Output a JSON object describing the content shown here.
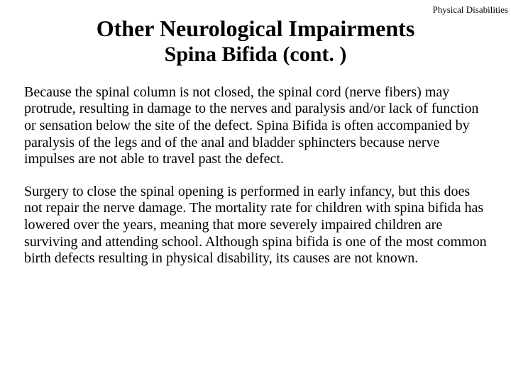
{
  "header": {
    "label": "Physical Disabilities"
  },
  "title": {
    "line1": "Other Neurological Impairments",
    "line2": "Spina Bifida (cont. )"
  },
  "body": {
    "p1": "Because the spinal column is not closed, the spinal cord (nerve fibers) may protrude, resulting in damage to the nerves and paralysis and/or lack of function or sensation below the site of the defect. Spina Bifida is often accompanied by paralysis of the legs and of the anal and bladder sphincters because nerve impulses are not able to travel past the defect.",
    "p2": "Surgery to close the spinal opening is performed in early infancy, but this does not repair the nerve damage. The mortality rate for children with spina bifida has lowered over the years, meaning that more severely impaired children are surviving and attending school. Although spina bifida is one of the most common birth defects resulting in physical disability, its causes are not known."
  },
  "styles": {
    "background_color": "#ffffff",
    "text_color": "#000000",
    "header_fontsize": 13,
    "title_fontsize": 32,
    "subtitle_fontsize": 30,
    "body_fontsize": 20,
    "font_family": "Times New Roman"
  }
}
